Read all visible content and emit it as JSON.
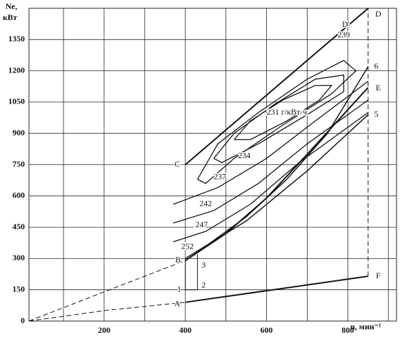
{
  "chart_data": {
    "type": "line",
    "y_label": [
      "Ne,",
      "кВт"
    ],
    "x_label": "n, мин⁻¹",
    "xlim": [
      15,
      920
    ],
    "ylim": [
      0,
      1500
    ],
    "xticks": [
      200,
      400,
      600,
      800
    ],
    "x_grid": [
      100,
      200,
      300,
      400,
      500,
      600,
      700,
      800,
      900
    ],
    "yticks": [
      0,
      150,
      300,
      450,
      600,
      750,
      900,
      1050,
      1200,
      1350
    ],
    "grid": true,
    "series": [
      {
        "x": [
          400,
          850
        ],
        "values": [
          750,
          1500
        ],
        "width": 2,
        "dash": false
      },
      {
        "x": [
          400,
          500,
          600,
          700,
          850
        ],
        "values": [
          290,
          420,
          590,
          800,
          1120
        ],
        "width": 2,
        "dash": false
      },
      {
        "x": [
          430,
          550,
          650,
          750,
          850
        ],
        "values": [
          330,
          500,
          680,
          900,
          1220
        ],
        "width": 1.5,
        "dash": false
      },
      {
        "x": [
          400,
          550,
          700,
          850
        ],
        "values": [
          300,
          480,
          720,
          990
        ],
        "width": 1.5,
        "dash": false
      },
      {
        "x": [
          400,
          850
        ],
        "values": [
          90,
          215
        ],
        "width": 2,
        "dash": false
      },
      {
        "x": [
          15,
          200,
          400
        ],
        "values": [
          0,
          50,
          90
        ],
        "width": 1,
        "dash": true
      },
      {
        "x": [
          15,
          200,
          400
        ],
        "values": [
          0,
          140,
          290
        ],
        "width": 1,
        "dash": true
      },
      {
        "x": [
          850,
          850
        ],
        "values": [
          215,
          1500
        ],
        "width": 1,
        "dash": true
      },
      {
        "x": [
          400,
          400,
          430,
          430
        ],
        "values": [
          290,
          150,
          150,
          320
        ],
        "width": 1,
        "dash": false
      },
      {
        "x": [
          520,
          560,
          640,
          720,
          760,
          730,
          650,
          560,
          520
        ],
        "values": [
          870,
          960,
          1060,
          1130,
          1130,
          1060,
          960,
          870,
          870
        ],
        "width": 1.3,
        "dash": false
      },
      {
        "x": [
          470,
          520,
          620,
          720,
          790,
          790,
          700,
          580,
          490,
          470
        ],
        "values": [
          780,
          900,
          1040,
          1160,
          1180,
          1100,
          990,
          850,
          760,
          780
        ],
        "width": 1.3,
        "dash": false
      },
      {
        "x": [
          430,
          480,
          580,
          700,
          790,
          820,
          760,
          640,
          520,
          450,
          430
        ],
        "values": [
          680,
          850,
          1000,
          1160,
          1250,
          1200,
          1090,
          940,
          780,
          660,
          680
        ],
        "width": 1.3,
        "dash": false
      },
      {
        "x": [
          370,
          480,
          600,
          720,
          850
        ],
        "values": [
          560,
          640,
          780,
          960,
          1150
        ],
        "width": 1.3,
        "dash": false
      },
      {
        "x": [
          370,
          470,
          580,
          700,
          850
        ],
        "values": [
          470,
          530,
          660,
          850,
          1060
        ],
        "width": 1.3,
        "dash": false
      },
      {
        "x": [
          370,
          450,
          560,
          680,
          850
        ],
        "values": [
          380,
          430,
          560,
          760,
          1000
        ],
        "width": 1.3,
        "dash": false
      }
    ],
    "annotations": [
      {
        "text": "A",
        "x": 380,
        "y": 80
      },
      {
        "text": "B",
        "x": 382,
        "y": 290
      },
      {
        "text": "C",
        "x": 380,
        "y": 750
      },
      {
        "text": "D",
        "x": 875,
        "y": 1470
      },
      {
        "text": "D'",
        "x": 795,
        "y": 1420
      },
      {
        "text": "E",
        "x": 875,
        "y": 1115
      },
      {
        "text": "F",
        "x": 875,
        "y": 215
      },
      {
        "text": "1",
        "x": 385,
        "y": 150
      },
      {
        "text": "2",
        "x": 445,
        "y": 170
      },
      {
        "text": "3",
        "x": 445,
        "y": 265
      },
      {
        "text": "5",
        "x": 870,
        "y": 990
      },
      {
        "text": "6",
        "x": 870,
        "y": 1220
      },
      {
        "text": "239",
        "x": 790,
        "y": 1370
      },
      {
        "text": "231 г/кВт·ч",
        "x": 650,
        "y": 1000
      },
      {
        "text": "234",
        "x": 545,
        "y": 790
      },
      {
        "text": "237",
        "x": 485,
        "y": 690
      },
      {
        "text": "242",
        "x": 450,
        "y": 560
      },
      {
        "text": "247",
        "x": 440,
        "y": 460
      },
      {
        "text": "252",
        "x": 405,
        "y": 355
      }
    ]
  }
}
